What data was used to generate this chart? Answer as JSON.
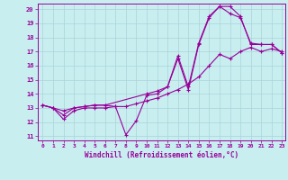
{
  "xlabel": "Windchill (Refroidissement éolien,°C)",
  "bg_color": "#c8eef0",
  "line_color": "#990099",
  "grid_color": "#aad4d8",
  "xlim": [
    -0.5,
    23.3
  ],
  "ylim": [
    10.7,
    20.4
  ],
  "xticks": [
    0,
    1,
    2,
    3,
    4,
    5,
    6,
    7,
    8,
    9,
    10,
    11,
    12,
    13,
    14,
    15,
    16,
    17,
    18,
    19,
    20,
    21,
    22,
    23
  ],
  "yticks": [
    11,
    12,
    13,
    14,
    15,
    16,
    17,
    18,
    19,
    20
  ],
  "line1_x": [
    0,
    1,
    2,
    3,
    4,
    5,
    6,
    7,
    8,
    9,
    10,
    11,
    12,
    13,
    14,
    15,
    16,
    17,
    18,
    19,
    20,
    21,
    22,
    23
  ],
  "line1_y": [
    13.2,
    13.0,
    12.2,
    12.8,
    13.0,
    13.0,
    13.0,
    13.1,
    11.1,
    12.1,
    13.9,
    14.0,
    14.5,
    16.5,
    14.3,
    17.5,
    19.4,
    20.2,
    20.2,
    19.5,
    17.5,
    17.5,
    17.5,
    16.9
  ],
  "line2_x": [
    0,
    1,
    2,
    3,
    4,
    5,
    6,
    7,
    8,
    9,
    10,
    11,
    12,
    13,
    14,
    15,
    16,
    17,
    18,
    19,
    20,
    21,
    22,
    23
  ],
  "line2_y": [
    13.2,
    13.0,
    12.5,
    13.0,
    13.1,
    13.2,
    13.2,
    13.1,
    13.1,
    13.3,
    13.5,
    13.7,
    14.0,
    14.3,
    14.7,
    15.2,
    16.0,
    16.8,
    16.5,
    17.0,
    17.3,
    17.0,
    17.2,
    17.0
  ],
  "line3_x": [
    0,
    1,
    2,
    3,
    4,
    5,
    6,
    10,
    11,
    12,
    13,
    14,
    15,
    16,
    17,
    18,
    19,
    20,
    21,
    22,
    23
  ],
  "line3_y": [
    13.2,
    13.0,
    12.8,
    13.0,
    13.1,
    13.2,
    13.2,
    14.0,
    14.2,
    14.5,
    16.7,
    14.5,
    17.6,
    19.5,
    20.2,
    19.7,
    19.4,
    17.6,
    17.5,
    17.5,
    16.9
  ]
}
